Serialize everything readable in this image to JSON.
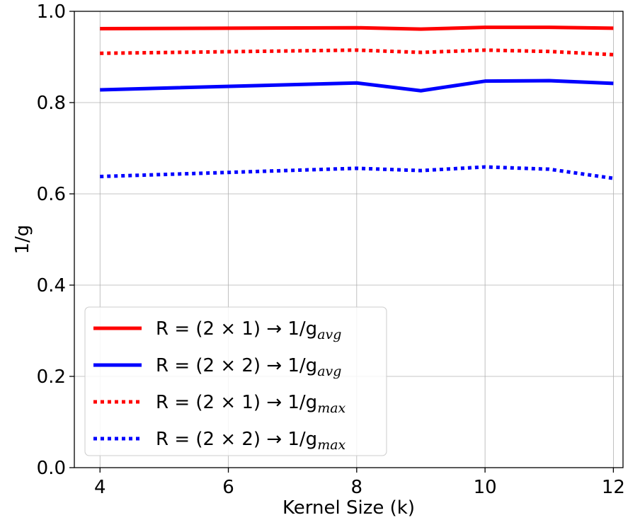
{
  "chart_data": {
    "type": "line",
    "xlabel": "Kernel Size (k)",
    "ylabel": "1/g",
    "xlim": [
      3.6,
      12.15
    ],
    "ylim": [
      0.0,
      1.0
    ],
    "xticks": [
      4,
      6,
      8,
      10,
      12
    ],
    "yticks": [
      0.0,
      0.2,
      0.4,
      0.6,
      0.8,
      1.0
    ],
    "grid": true,
    "legend_position": "lower-left",
    "x": [
      4,
      8,
      9,
      10,
      11,
      12
    ],
    "series": [
      {
        "name": "R = (2 × 1) → 1/g_avg",
        "label_main": "R = (2 × 1) → 1/g",
        "label_sub": "avg",
        "color": "#ff0000",
        "style": "solid",
        "values": [
          0.962,
          0.964,
          0.961,
          0.965,
          0.965,
          0.963
        ]
      },
      {
        "name": "R = (2 × 2) → 1/g_avg",
        "label_main": "R = (2 × 2) → 1/g",
        "label_sub": "avg",
        "color": "#0000ff",
        "style": "solid",
        "values": [
          0.828,
          0.843,
          0.826,
          0.847,
          0.848,
          0.842
        ]
      },
      {
        "name": "R = (2 × 1) → 1/g_max",
        "label_main": "R = (2 × 1) → 1/g",
        "label_sub": "max",
        "color": "#ff0000",
        "style": "dotted",
        "values": [
          0.908,
          0.915,
          0.91,
          0.915,
          0.912,
          0.905
        ]
      },
      {
        "name": "R = (2 × 2) → 1/g_max",
        "label_main": "R = (2 × 2) → 1/g",
        "label_sub": "max",
        "color": "#0000ff",
        "style": "dotted",
        "values": [
          0.638,
          0.656,
          0.651,
          0.659,
          0.654,
          0.634
        ]
      }
    ]
  }
}
